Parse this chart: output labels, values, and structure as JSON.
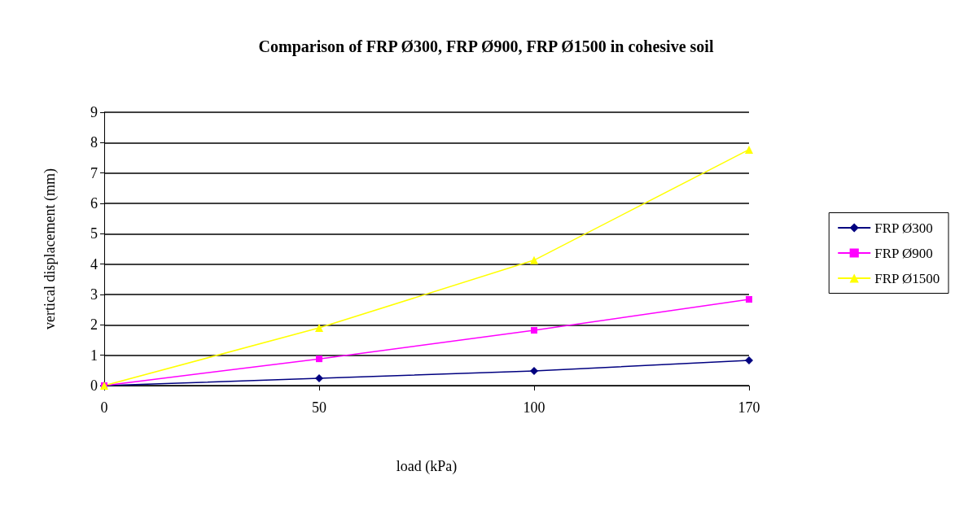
{
  "chart_data": {
    "type": "line",
    "title": "Comparison of FRP Ø300, FRP Ø900, FRP Ø1500 in cohesive soil",
    "xlabel": "load (kPa)",
    "ylabel": "vertical displacement (mm)",
    "categories": [
      "0",
      "50",
      "100",
      "170"
    ],
    "series": [
      {
        "name": "FRP Ø300",
        "color": "#000080",
        "marker": "diamond",
        "values": [
          0,
          0.24,
          0.48,
          0.83
        ]
      },
      {
        "name": "FRP Ø900",
        "color": "#ff00ff",
        "marker": "square",
        "values": [
          0,
          0.88,
          1.82,
          2.84
        ]
      },
      {
        "name": "FRP Ø1500",
        "color": "#ffff00",
        "marker": "triangle",
        "values": [
          0,
          1.9,
          4.13,
          7.77
        ]
      }
    ],
    "ylim": [
      0,
      9
    ],
    "yticks": [
      0,
      1,
      2,
      3,
      4,
      5,
      6,
      7,
      8,
      9
    ],
    "grid": "y",
    "legend": "right",
    "line_style": "solid"
  }
}
